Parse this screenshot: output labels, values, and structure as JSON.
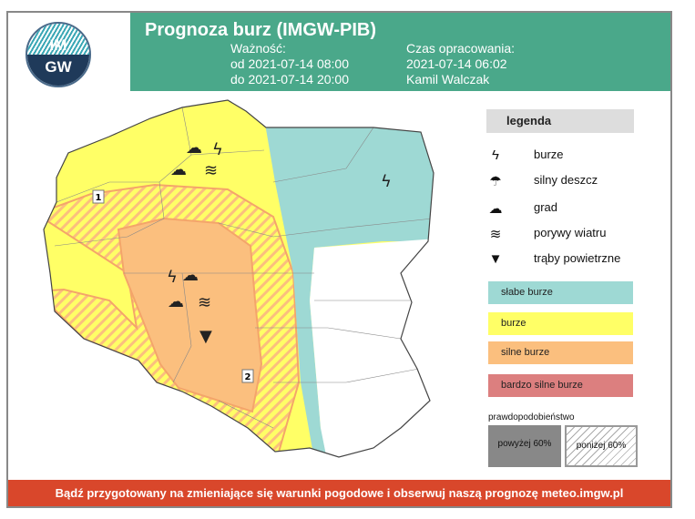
{
  "header": {
    "title": "Prognoza burz (IMGW-PIB)",
    "validity_label": "Ważność:",
    "valid_from": "od 2021-07-14 08:00",
    "valid_to": "do 2021-07-14 20:00",
    "prepared_label": "Czas opracowania:",
    "prepared_time": "2021-07-14 06:02",
    "author": "Kamil Walczak"
  },
  "logo": {
    "top": "IM",
    "bottom": "GW"
  },
  "legend": {
    "title": "legenda",
    "symbols": [
      {
        "icon": "lightning-icon",
        "glyph": "ϟ",
        "label": "burze"
      },
      {
        "icon": "heavy-rain-icon",
        "glyph": "☂",
        "label": "silny deszcz"
      },
      {
        "icon": "hail-icon",
        "glyph": "☁",
        "label": "grad"
      },
      {
        "icon": "wind-gust-icon",
        "glyph": "≋",
        "label": "porywy wiatru"
      },
      {
        "icon": "tornado-icon",
        "glyph": "▼",
        "label": "trąby powietrzne"
      }
    ],
    "levels": [
      {
        "label": "słabe burze",
        "color": "#9ed9d4"
      },
      {
        "label": "burze",
        "color": "#ffff66"
      },
      {
        "label": "silne burze",
        "color": "#fbbf7e"
      },
      {
        "label": "bardzo silne burze",
        "color": "#dc7f7f"
      }
    ],
    "probability_title": "prawdopodobieństwo",
    "prob_above": "powyżej 60%",
    "prob_below": "poniżej 60%"
  },
  "map": {
    "area_labels": [
      "1",
      "2"
    ]
  },
  "footer": "Bądź przygotowany na zmieniające się warunki pogodowe i obserwuj naszą prognozę meteo.imgw.pl"
}
